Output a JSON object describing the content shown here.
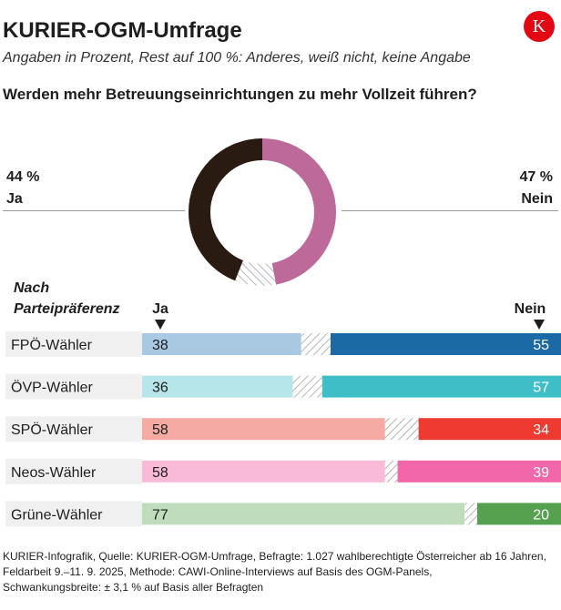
{
  "header": {
    "title": "KURIER-OGM-Umfrage",
    "subtitle": "Angaben in Prozent, Rest auf 100 %: Anderes, weiß nicht, keine Angabe",
    "question": "Werden mehr Betreuungseinrichtungen zu mehr Vollzeit führen?",
    "logo_letter": "K"
  },
  "overall": {
    "ja_value": "44 %",
    "ja_label": "Ja",
    "nein_value": "47 %",
    "nein_label": "Nein"
  },
  "breakdown": {
    "group_title_line1": "Nach",
    "group_title_line2": "Parteipräferenz",
    "ja_head": "Ja",
    "nein_head": "Nein"
  },
  "colors": {
    "ja_donut": "#2a1b12",
    "nein_donut": "#bd6a9a",
    "brand_red": "#e30613",
    "hatch": "#b5b5b5"
  },
  "chart_data": [
    {
      "type": "pie",
      "title": "Werden mehr Betreuungseinrichtungen zu mehr Vollzeit führen?",
      "categories": [
        "Nein",
        "Rest",
        "Ja"
      ],
      "values": [
        47,
        9,
        44
      ],
      "colors": [
        "#bd6a9a",
        "hatch",
        "#2a1b12"
      ],
      "labels": [
        "47 %",
        "",
        "44 %"
      ]
    },
    {
      "type": "bar",
      "orientation": "horizontal",
      "stacked": true,
      "title": "Nach Parteipräferenz",
      "categories": [
        "FPÖ-Wähler",
        "ÖVP-Wähler",
        "SPÖ-Wähler",
        "Neos-Wähler",
        "Grüne-Wähler"
      ],
      "series": [
        {
          "name": "Ja",
          "values": [
            38,
            36,
            58,
            58,
            77
          ],
          "colors": [
            "#a9c9e2",
            "#b6e6ea",
            "#f5aba4",
            "#f9bad8",
            "#bfdcbd"
          ]
        },
        {
          "name": "Rest",
          "values": [
            7,
            7,
            8,
            3,
            3
          ]
        },
        {
          "name": "Nein",
          "values": [
            55,
            57,
            34,
            39,
            20
          ],
          "colors": [
            "#1b6aa5",
            "#3fbec8",
            "#ef3a32",
            "#f266aa",
            "#55a150"
          ]
        }
      ],
      "xlim": [
        0,
        100
      ]
    }
  ],
  "footer": {
    "line1": "KURIER-Infografik, Quelle: KURIER-OGM-Umfrage, Befragte: 1.027 wahlberechtigte Österreicher ab 16 Jahren,",
    "line2": "Feldarbeit 9.–11. 9. 2025,  Methode: CAWI-Online-Interviews auf Basis des OGM-Panels,",
    "line3": "Schwankungsbreite: ± 3,1 % auf Basis aller Befragten"
  }
}
